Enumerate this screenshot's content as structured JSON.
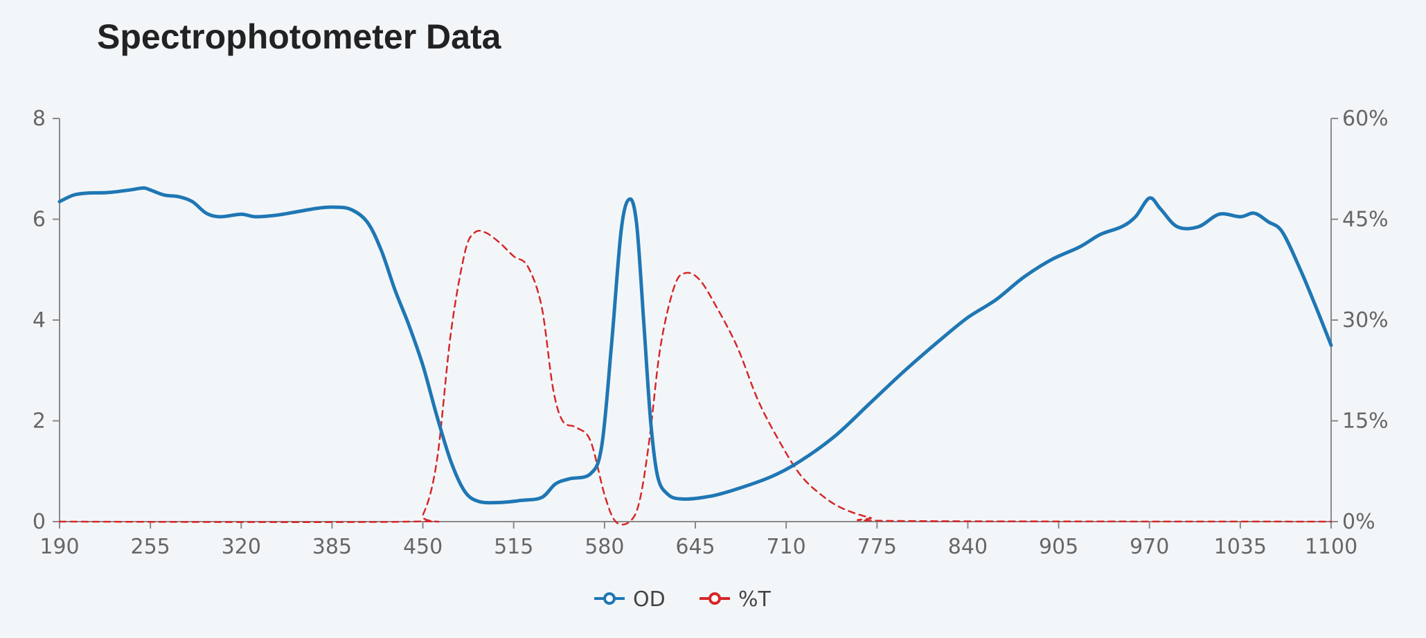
{
  "chart_data": {
    "type": "line",
    "title": "Spectrophotometer Data",
    "x_ticks": [
      "190",
      "255",
      "320",
      "385",
      "450",
      "515",
      "580",
      "645",
      "710",
      "775",
      "840",
      "905",
      "970",
      "1035",
      "1100"
    ],
    "y_left_ticks": [
      "0",
      "2",
      "4",
      "6",
      "8"
    ],
    "y_right_ticks": [
      "0%",
      "15%",
      "30%",
      "45%",
      "60%"
    ],
    "xlim": [
      190,
      1100
    ],
    "ylim_left": [
      0,
      8
    ],
    "ylim_right": [
      0,
      60
    ],
    "grid": false,
    "legend_position": "bottom-center",
    "colors": {
      "od": "#1f77b4",
      "t": "#d62728",
      "axis": "#888888"
    },
    "series": [
      {
        "name": "OD",
        "axis": "left",
        "style": "solid",
        "points": [
          [
            190,
            6.35
          ],
          [
            200,
            6.48
          ],
          [
            210,
            6.52
          ],
          [
            225,
            6.53
          ],
          [
            240,
            6.58
          ],
          [
            250,
            6.62
          ],
          [
            255,
            6.58
          ],
          [
            265,
            6.48
          ],
          [
            275,
            6.45
          ],
          [
            285,
            6.35
          ],
          [
            295,
            6.12
          ],
          [
            305,
            6.05
          ],
          [
            320,
            6.1
          ],
          [
            330,
            6.05
          ],
          [
            345,
            6.08
          ],
          [
            360,
            6.15
          ],
          [
            375,
            6.22
          ],
          [
            385,
            6.24
          ],
          [
            398,
            6.2
          ],
          [
            410,
            5.95
          ],
          [
            420,
            5.4
          ],
          [
            430,
            4.6
          ],
          [
            440,
            3.9
          ],
          [
            450,
            3.1
          ],
          [
            460,
            2.1
          ],
          [
            470,
            1.2
          ],
          [
            480,
            0.6
          ],
          [
            490,
            0.4
          ],
          [
            505,
            0.38
          ],
          [
            520,
            0.42
          ],
          [
            535,
            0.48
          ],
          [
            545,
            0.75
          ],
          [
            555,
            0.85
          ],
          [
            570,
            0.95
          ],
          [
            578,
            1.5
          ],
          [
            585,
            3.5
          ],
          [
            592,
            5.8
          ],
          [
            598,
            6.4
          ],
          [
            603,
            5.9
          ],
          [
            608,
            4.0
          ],
          [
            613,
            2.0
          ],
          [
            618,
            0.9
          ],
          [
            625,
            0.55
          ],
          [
            635,
            0.45
          ],
          [
            655,
            0.5
          ],
          [
            675,
            0.65
          ],
          [
            700,
            0.9
          ],
          [
            720,
            1.2
          ],
          [
            745,
            1.7
          ],
          [
            770,
            2.35
          ],
          [
            795,
            3.0
          ],
          [
            820,
            3.6
          ],
          [
            840,
            4.05
          ],
          [
            860,
            4.4
          ],
          [
            880,
            4.85
          ],
          [
            900,
            5.2
          ],
          [
            920,
            5.45
          ],
          [
            935,
            5.7
          ],
          [
            950,
            5.85
          ],
          [
            960,
            6.05
          ],
          [
            970,
            6.42
          ],
          [
            978,
            6.2
          ],
          [
            990,
            5.85
          ],
          [
            1005,
            5.85
          ],
          [
            1020,
            6.1
          ],
          [
            1035,
            6.05
          ],
          [
            1045,
            6.12
          ],
          [
            1055,
            5.95
          ],
          [
            1065,
            5.75
          ],
          [
            1078,
            5.0
          ],
          [
            1090,
            4.2
          ],
          [
            1100,
            3.5
          ]
        ]
      },
      {
        "name": "%T",
        "axis": "right",
        "style": "dashed",
        "points": [
          [
            190,
            0
          ],
          [
            440,
            0
          ],
          [
            450,
            1.0
          ],
          [
            460,
            9.0
          ],
          [
            470,
            28.0
          ],
          [
            480,
            40.0
          ],
          [
            487,
            43.0
          ],
          [
            495,
            43.0
          ],
          [
            505,
            41.5
          ],
          [
            515,
            39.5
          ],
          [
            525,
            38.0
          ],
          [
            535,
            32.0
          ],
          [
            543,
            20.0
          ],
          [
            550,
            15.0
          ],
          [
            560,
            14.0
          ],
          [
            570,
            12.0
          ],
          [
            580,
            4.0
          ],
          [
            588,
            0
          ],
          [
            598,
            0
          ],
          [
            605,
            3.0
          ],
          [
            612,
            12.0
          ],
          [
            620,
            26.0
          ],
          [
            630,
            35.0
          ],
          [
            638,
            37.0
          ],
          [
            648,
            36.0
          ],
          [
            660,
            32.0
          ],
          [
            675,
            26.0
          ],
          [
            690,
            18.0
          ],
          [
            705,
            12.0
          ],
          [
            720,
            7.0
          ],
          [
            735,
            4.0
          ],
          [
            750,
            2.0
          ],
          [
            770,
            0.6
          ],
          [
            790,
            0.1
          ],
          [
            1100,
            0
          ]
        ]
      }
    ]
  }
}
